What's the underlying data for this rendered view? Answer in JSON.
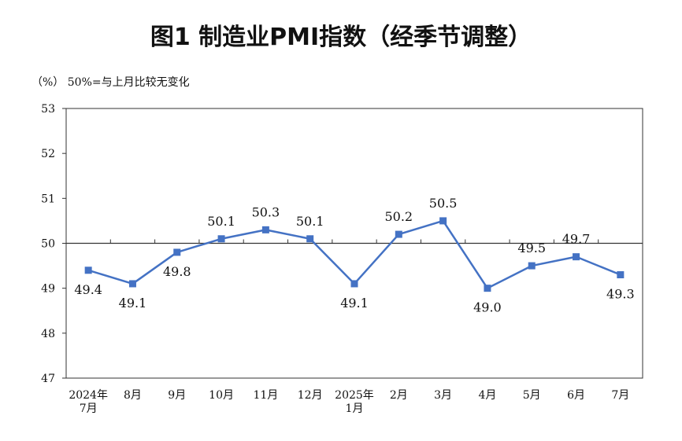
{
  "title": "图1  制造业PMI指数（经季节调整）",
  "unit_note": "（%）  50%=与上月比较无变化",
  "chart_data": {
    "type": "line",
    "title": "图1  制造业PMI指数（经季节调整）",
    "ylabel": "（%）",
    "annotation": "50%=与上月比较无变化",
    "ylim": [
      47,
      53
    ],
    "yticks": [
      47,
      48,
      49,
      50,
      51,
      52,
      53
    ],
    "reference_line": 50,
    "categories": [
      [
        "2024年",
        "7月"
      ],
      [
        "8月"
      ],
      [
        "9月"
      ],
      [
        "10月"
      ],
      [
        "11月"
      ],
      [
        "12月"
      ],
      [
        "2025年",
        "1月"
      ],
      [
        "2月"
      ],
      [
        "3月"
      ],
      [
        "4月"
      ],
      [
        "5月"
      ],
      [
        "6月"
      ],
      [
        "7月"
      ]
    ],
    "series": [
      {
        "values": [
          49.4,
          49.1,
          49.8,
          50.1,
          50.3,
          50.1,
          49.1,
          50.2,
          50.5,
          49.0,
          49.5,
          49.7,
          49.3
        ],
        "label_positions": [
          "below",
          "below",
          "below",
          "above",
          "above",
          "above",
          "below",
          "above",
          "above",
          "below",
          "above",
          "above",
          "below"
        ],
        "color": "#4472C4"
      }
    ],
    "grid": false,
    "legend": "none"
  }
}
